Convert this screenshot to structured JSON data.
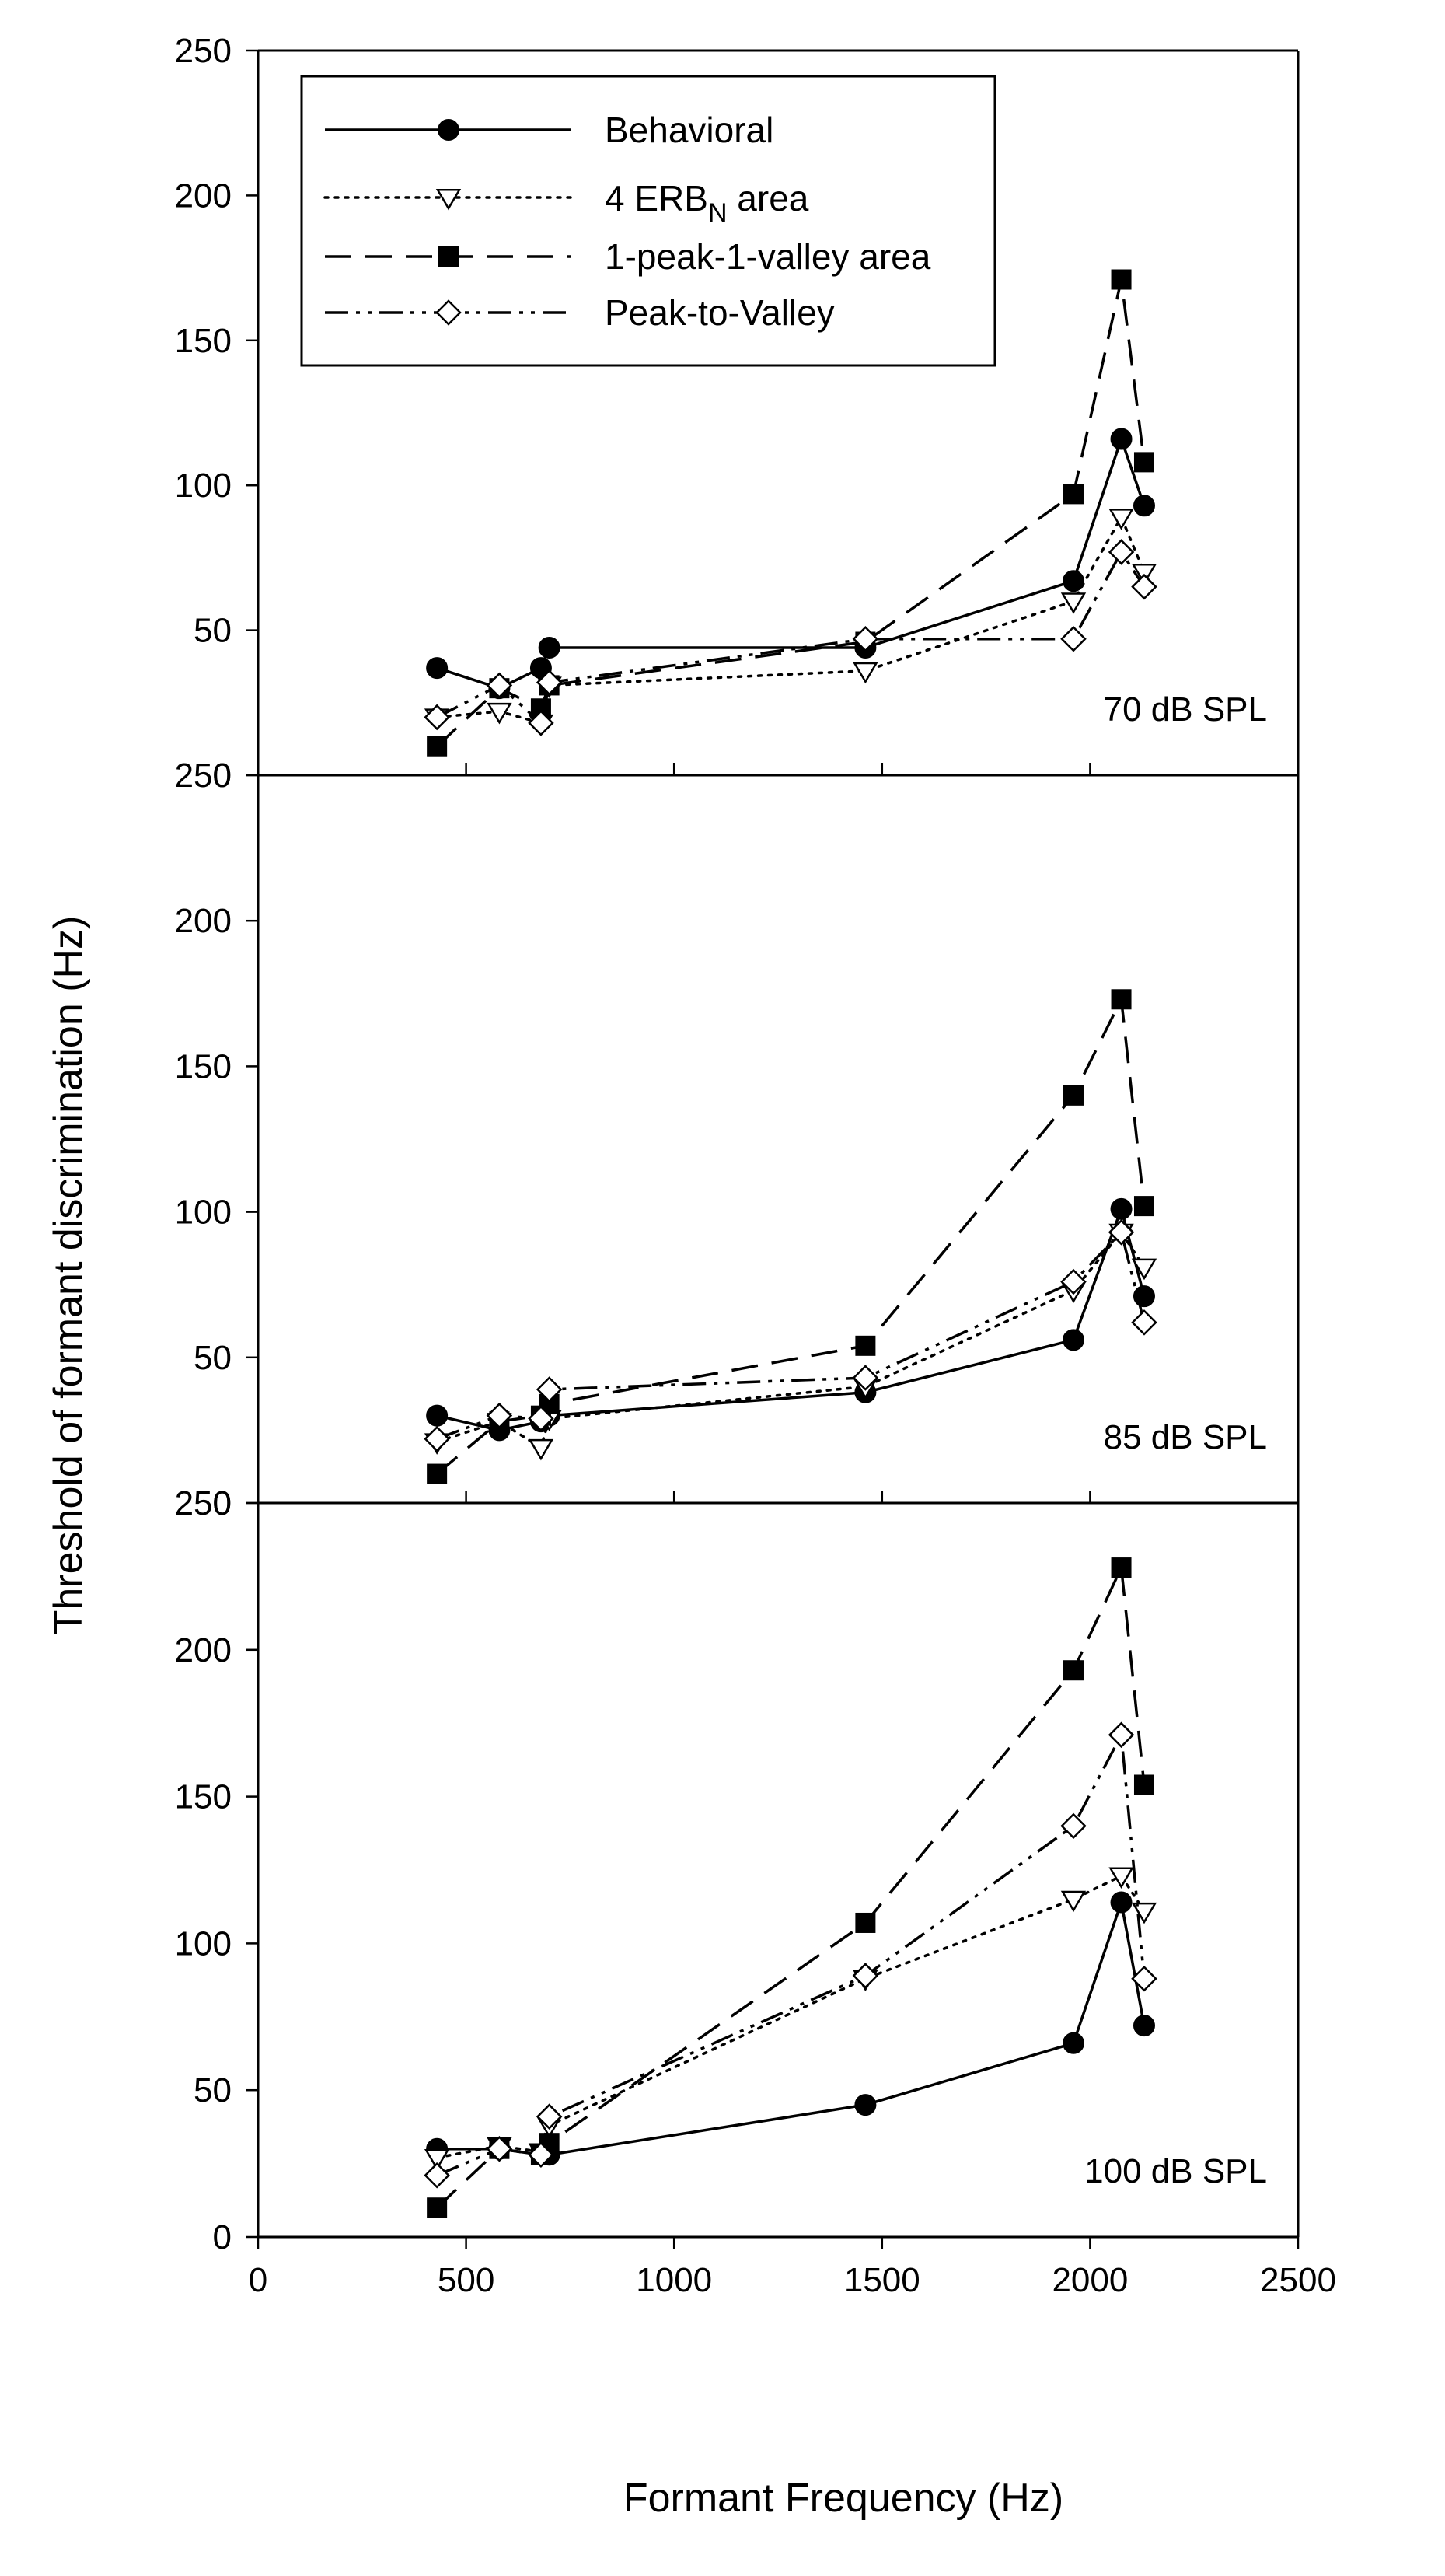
{
  "chart_data": {
    "type": "line",
    "layout": "three vertically stacked panels sharing one x axis",
    "xlabel": "Formant Frequency (Hz)",
    "ylabel": "Threshold of formant discrimination (Hz)",
    "xlim": [
      0,
      2500
    ],
    "ylim": [
      0,
      250
    ],
    "xticks": [
      "0",
      "500",
      "1000",
      "1500",
      "2000",
      "2500"
    ],
    "yticks": [
      "0",
      "50",
      "100",
      "150",
      "200",
      "250"
    ],
    "legend": {
      "placement": "top-left of first panel",
      "entries": [
        {
          "series": "behavioral",
          "label": "Behavioral",
          "label_sub": "",
          "label_tail": ""
        },
        {
          "series": "erb",
          "label": "4 ERB",
          "label_sub": "N",
          "label_tail": " area"
        },
        {
          "series": "peakvalley_area",
          "label": "1-peak-1-valley area",
          "label_sub": "",
          "label_tail": ""
        },
        {
          "series": "peak_to_valley",
          "label": "Peak-to-Valley",
          "label_sub": "",
          "label_tail": ""
        }
      ]
    },
    "series_styles": {
      "behavioral": {
        "dash": "solid",
        "marker": "filled-circle"
      },
      "erb": {
        "dash": "dotted",
        "marker": "open-triangle-down"
      },
      "peakvalley_area": {
        "dash": "long-dash",
        "marker": "filled-square"
      },
      "peak_to_valley": {
        "dash": "dash-dot-dot",
        "marker": "open-diamond"
      }
    },
    "panels": [
      {
        "label": "70 dB SPL",
        "series": [
          {
            "key": "behavioral",
            "x": [
              430,
              580,
              680,
              700,
              1460,
              1960,
              2075,
              2130
            ],
            "y": [
              37,
              30,
              37,
              44,
              44,
              67,
              116,
              93
            ]
          },
          {
            "key": "erb",
            "x": [
              430,
              580,
              680,
              700,
              1460,
              1960,
              2075,
              2130
            ],
            "y": [
              20,
              22,
              18,
              31,
              36,
              60,
              89,
              70
            ]
          },
          {
            "key": "peakvalley_area",
            "x": [
              430,
              580,
              680,
              700,
              1460,
              1960,
              2075,
              2130
            ],
            "y": [
              10,
              30,
              23,
              31,
              46,
              97,
              171,
              108
            ]
          },
          {
            "key": "peak_to_valley",
            "x": [
              430,
              580,
              680,
              700,
              1460,
              1960,
              2075,
              2130
            ],
            "y": [
              20,
              31,
              18,
              32,
              47,
              47,
              77,
              65
            ]
          }
        ]
      },
      {
        "label": "85 dB SPL",
        "series": [
          {
            "key": "behavioral",
            "x": [
              430,
              580,
              680,
              700,
              1460,
              1960,
              2075,
              2130
            ],
            "y": [
              30,
              25,
              28,
              30,
              38,
              56,
              101,
              71
            ]
          },
          {
            "key": "erb",
            "x": [
              430,
              580,
              680,
              700,
              1460,
              1960,
              2075,
              2130
            ],
            "y": [
              21,
              28,
              19,
              29,
              40,
              73,
              93,
              81
            ]
          },
          {
            "key": "peakvalley_area",
            "x": [
              430,
              580,
              680,
              700,
              1460,
              1960,
              2075,
              2130
            ],
            "y": [
              10,
              28,
              30,
              34,
              54,
              140,
              173,
              102
            ]
          },
          {
            "key": "peak_to_valley",
            "x": [
              430,
              580,
              680,
              700,
              1460,
              1960,
              2075,
              2130
            ],
            "y": [
              22,
              30,
              29,
              39,
              43,
              76,
              93,
              62
            ]
          }
        ]
      },
      {
        "label": "100 dB SPL",
        "series": [
          {
            "key": "behavioral",
            "x": [
              430,
              580,
              680,
              700,
              1460,
              1960,
              2075,
              2130
            ],
            "y": [
              30,
              30,
              28,
              28,
              45,
              66,
              114,
              72
            ]
          },
          {
            "key": "erb",
            "x": [
              430,
              580,
              680,
              700,
              1460,
              1960,
              2075,
              2130
            ],
            "y": [
              27,
              31,
              29,
              38,
              88,
              115,
              123,
              111
            ]
          },
          {
            "key": "peakvalley_area",
            "x": [
              430,
              580,
              680,
              700,
              1460,
              1960,
              2075,
              2130
            ],
            "y": [
              10,
              30,
              28,
              32,
              107,
              193,
              228,
              154
            ]
          },
          {
            "key": "peak_to_valley",
            "x": [
              430,
              580,
              680,
              700,
              1460,
              1960,
              2075,
              2130
            ],
            "y": [
              21,
              30,
              28,
              41,
              89,
              140,
              171,
              88
            ]
          }
        ]
      }
    ]
  }
}
